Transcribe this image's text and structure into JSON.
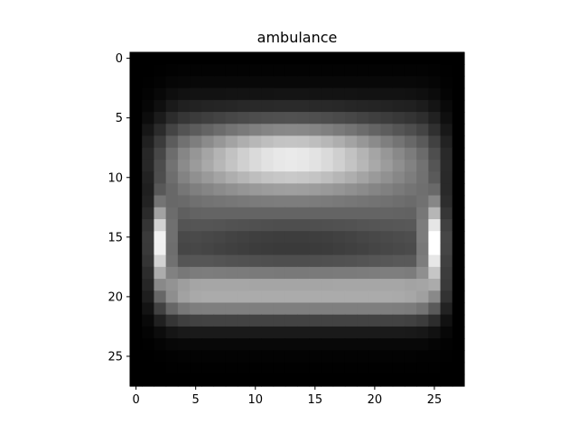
{
  "chart_data": {
    "type": "heatmap",
    "title": "ambulance",
    "colormap": "gray",
    "rows": 28,
    "cols": 28,
    "xlim": [
      -0.5,
      27.5
    ],
    "ylim": [
      27.5,
      -0.5
    ],
    "x_ticks": [
      0,
      5,
      10,
      15,
      20,
      25
    ],
    "y_ticks": [
      0,
      5,
      10,
      15,
      20,
      25
    ],
    "x_tick_labels": [
      "0",
      "5",
      "10",
      "15",
      "20",
      "25"
    ],
    "y_tick_labels": [
      "0",
      "5",
      "10",
      "15",
      "20",
      "25"
    ],
    "value_range": [
      0,
      1
    ],
    "description": "Mean-image heatmap of a 28x28 grayscale image"
  }
}
